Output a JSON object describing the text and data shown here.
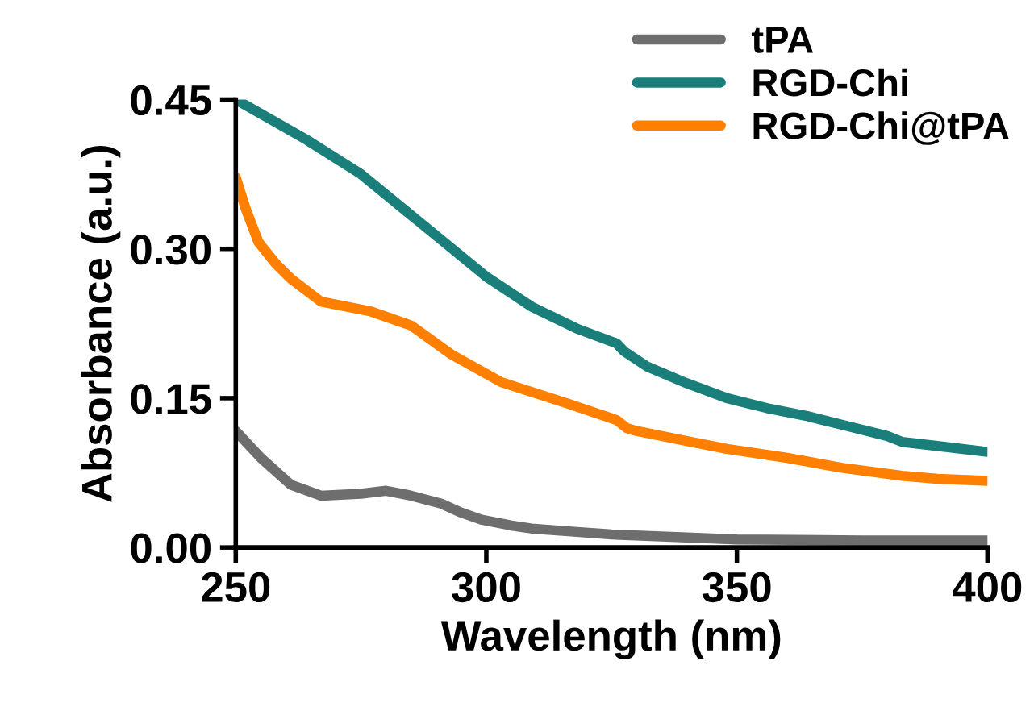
{
  "chart_data": {
    "type": "line",
    "xlabel": "Wavelength (nm)",
    "ylabel": "Absorbance (a.u.)",
    "xlim": [
      250,
      400
    ],
    "xticks": [
      250,
      300,
      350,
      400
    ],
    "ylim": [
      0,
      0.45
    ],
    "yticks": [
      {
        "value": 0,
        "label": "0.00"
      },
      {
        "value": 0.15,
        "label": "0.15"
      },
      {
        "value": 0.3,
        "label": "0.30"
      },
      {
        "value": 0.45,
        "label": "0.45"
      }
    ],
    "grid": false,
    "legend": "top right",
    "marker": "none",
    "line_style": "solid",
    "series": [
      {
        "name": "tPA",
        "color": "#6e6e6e",
        "x": [
          250,
          255,
          261,
          267,
          275,
          280,
          285,
          291,
          295,
          299,
          305,
          309,
          317,
          325,
          340,
          350,
          375,
          400
        ],
        "values": [
          0.117,
          0.09,
          0.063,
          0.052,
          0.054,
          0.057,
          0.052,
          0.044,
          0.035,
          0.028,
          0.022,
          0.019,
          0.016,
          0.013,
          0.01,
          0.008,
          0.007,
          0.007
        ]
      },
      {
        "name": "RGD-Chi",
        "color": "#1a7f7a",
        "x": [
          250,
          264,
          275,
          283.5,
          292,
          300,
          309,
          318,
          326,
          327.5,
          332,
          340,
          348,
          356,
          364,
          372,
          380,
          383,
          390,
          400
        ],
        "values": [
          0.45,
          0.41,
          0.375,
          0.34,
          0.305,
          0.272,
          0.242,
          0.22,
          0.205,
          0.197,
          0.182,
          0.165,
          0.15,
          0.14,
          0.132,
          0.122,
          0.112,
          0.106,
          0.102,
          0.096
        ]
      },
      {
        "name": "RGD-Chi@tPA",
        "color": "#ff8000",
        "x": [
          250,
          252,
          254.5,
          258,
          261,
          267,
          277,
          285,
          293,
          303,
          316,
          326,
          328,
          330,
          340,
          348,
          360,
          371,
          383,
          390,
          400
        ],
        "values": [
          0.372,
          0.34,
          0.307,
          0.285,
          0.27,
          0.247,
          0.237,
          0.223,
          0.194,
          0.166,
          0.145,
          0.128,
          0.12,
          0.117,
          0.107,
          0.099,
          0.09,
          0.08,
          0.072,
          0.069,
          0.067
        ]
      }
    ]
  }
}
